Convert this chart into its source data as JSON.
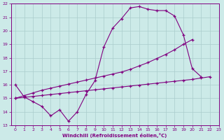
{
  "xlabel": "Windchill (Refroidissement éolien,°C)",
  "bg_color": "#cceae8",
  "line_color": "#800080",
  "grid_color": "#aacccc",
  "x_values": [
    0,
    1,
    2,
    3,
    4,
    5,
    6,
    7,
    8,
    9,
    10,
    11,
    12,
    13,
    14,
    15,
    16,
    17,
    18,
    19,
    20,
    21,
    22
  ],
  "line1": [
    16.0,
    15.1,
    14.75,
    14.4,
    13.7,
    14.15,
    13.3,
    14.0,
    15.3,
    16.3,
    18.8,
    20.2,
    20.9,
    21.7,
    21.8,
    21.6,
    21.5,
    21.5,
    21.1,
    19.7,
    17.2,
    16.6,
    null
  ],
  "line2": [
    15.0,
    15.2,
    15.4,
    15.6,
    15.75,
    15.9,
    16.05,
    16.2,
    16.35,
    16.5,
    16.65,
    16.8,
    16.95,
    17.15,
    17.4,
    17.65,
    17.95,
    18.25,
    18.6,
    19.0,
    19.35,
    null,
    null
  ],
  "line3": [
    15.0,
    15.07,
    15.14,
    15.21,
    15.28,
    15.35,
    15.42,
    15.49,
    15.56,
    15.63,
    15.7,
    15.77,
    15.84,
    15.91,
    15.98,
    16.05,
    16.12,
    16.19,
    16.26,
    16.33,
    16.4,
    16.5,
    16.6
  ],
  "ylim": [
    13,
    22
  ],
  "xlim": [
    -0.5,
    23
  ],
  "yticks": [
    13,
    14,
    15,
    16,
    17,
    18,
    19,
    20,
    21,
    22
  ],
  "xticks": [
    0,
    1,
    2,
    3,
    4,
    5,
    6,
    7,
    8,
    9,
    10,
    11,
    12,
    13,
    14,
    15,
    16,
    17,
    18,
    19,
    20,
    21,
    22,
    23
  ]
}
